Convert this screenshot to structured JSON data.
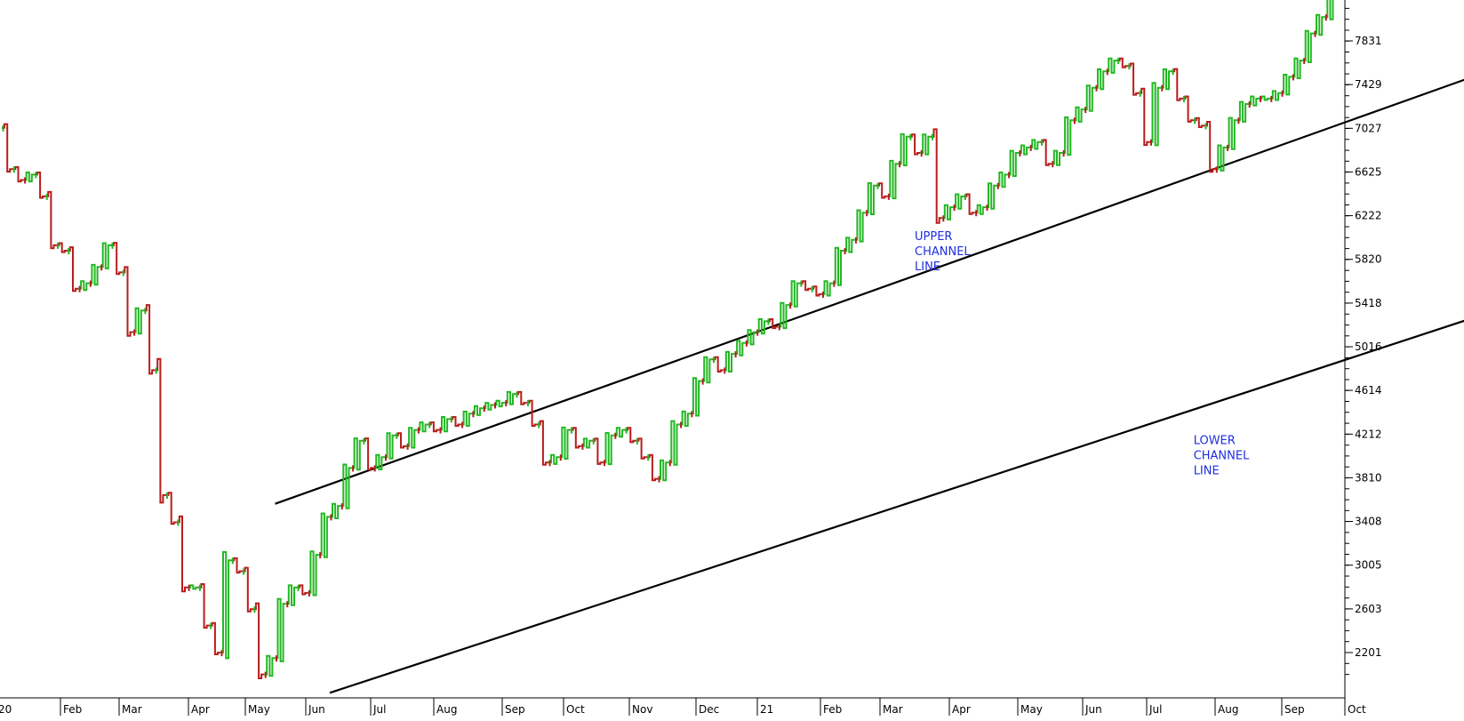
{
  "chart_data": {
    "type": "line",
    "title": "",
    "xlabel": "",
    "ylabel": "",
    "y_ticks": [
      2201,
      2603,
      3005,
      3408,
      3810,
      4212,
      4614,
      5016,
      5418,
      5820,
      6222,
      6625,
      7027,
      7429,
      7831
    ],
    "ylim": [
      1800,
      8400
    ],
    "x_labels": [
      "20",
      "Feb",
      "Mar",
      "Apr",
      "May",
      "Jun",
      "Jul",
      "Aug",
      "Sep",
      "Oct",
      "Nov",
      "Dec",
      "21",
      "Feb",
      "Mar",
      "Apr",
      "May",
      "Jun",
      "Jul",
      "Aug",
      "Sep",
      "Oct"
    ],
    "grid": false,
    "candle_colors": {
      "up": "#22b822",
      "down": "#b81c1c"
    },
    "series": [
      {
        "values": [
          7031,
          6650,
          6550,
          6600,
          6400,
          5950,
          5900,
          5550,
          5600,
          5750,
          5950,
          5700,
          5150,
          5350,
          4800,
          3650,
          3400,
          2800,
          2800,
          2450,
          2200,
          3050,
          2950,
          2600,
          2000,
          2150,
          2650,
          2800,
          2750,
          3100,
          3450,
          3550,
          3900,
          4150,
          3900,
          4000,
          4200,
          4100,
          4250,
          4300,
          4250,
          4350,
          4300,
          4400,
          4450,
          4480,
          4500,
          4580,
          4500,
          4300,
          3950,
          4000,
          4250,
          4100,
          4150,
          3950,
          4200,
          4250,
          4150,
          4000,
          3800,
          3950,
          4300,
          4400,
          4700,
          4900,
          4800,
          4950,
          5050,
          5150,
          5250,
          5200,
          5400,
          5600,
          5550,
          5500,
          5600,
          5900,
          6000,
          6250,
          6500,
          6400,
          6700,
          6950,
          6800,
          6950,
          6200,
          6300,
          6400,
          6250,
          6300,
          6500,
          6600,
          6800,
          6850,
          6900,
          6700,
          6800,
          7100,
          7200,
          7400,
          7550,
          7650,
          7600,
          7350,
          6900,
          7400,
          7550,
          7300,
          7100,
          7050,
          6650,
          6850,
          7100,
          7250,
          7300,
          7300,
          7350,
          7500,
          7650,
          7900,
          8050,
          8400
        ]
      }
    ],
    "annotations": [
      {
        "text": [
          "UPPER",
          "CHANNEL",
          "LINE"
        ],
        "x": 83.5,
        "y": 6000
      },
      {
        "text": [
          "LOWER",
          "CHANNEL",
          "LINE"
        ],
        "x": 109,
        "y": 4120
      }
    ],
    "trendlines": [
      {
        "name": "upper",
        "points": [
          [
            25,
            3570
          ],
          [
            161,
            8450
          ]
        ]
      },
      {
        "name": "lower",
        "points": [
          [
            30,
            1830
          ],
          [
            180,
            6780
          ]
        ]
      }
    ]
  }
}
